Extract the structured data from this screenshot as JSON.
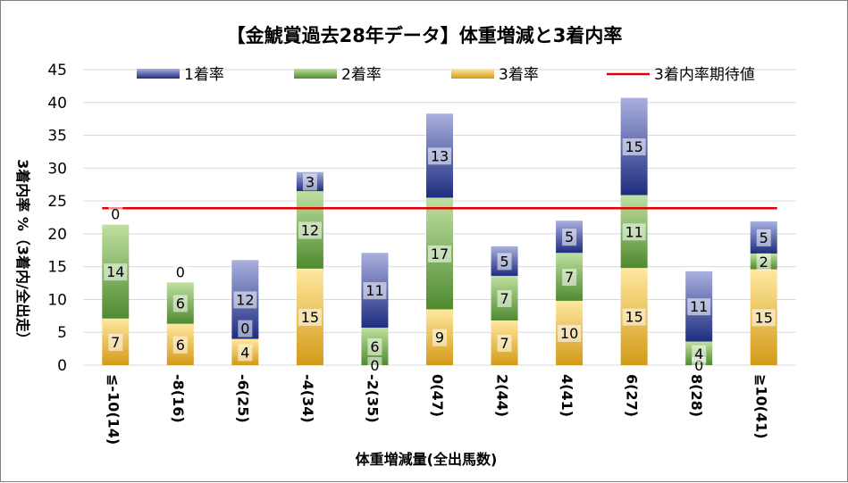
{
  "chart_data": {
    "type": "bar",
    "stacked": true,
    "title": "【金鯱賞過去28年データ】体重増減と3着内率",
    "xlabel": "体重増減量(全出馬数)",
    "ylabel": "3着内率 %（3着内/全出走）",
    "ylim": [
      0,
      45
    ],
    "yticks": [
      0,
      5,
      10,
      15,
      20,
      25,
      30,
      35,
      40,
      45
    ],
    "grid": true,
    "legend_position": "top",
    "categories": [
      "≦-10(14)",
      "-8(16)",
      "-6(25)",
      "-4(34)",
      "-2(35)",
      "0(47)",
      "2(44)",
      "4(41)",
      "6(27)",
      "8(28)",
      "≧10(41)"
    ],
    "series": [
      {
        "name": "3着率",
        "color": "#e6b640",
        "values": [
          7.1,
          6.3,
          4.0,
          14.7,
          0.0,
          8.5,
          6.8,
          9.8,
          14.8,
          0.0,
          14.6
        ],
        "labels": [
          "7",
          "6",
          "4",
          "15",
          "0",
          "9",
          "7",
          "10",
          "15",
          "0",
          "15"
        ]
      },
      {
        "name": "2着率",
        "color": "#70a048",
        "values": [
          14.3,
          6.3,
          0.0,
          11.8,
          5.7,
          17.0,
          6.8,
          7.3,
          11.1,
          3.6,
          2.4
        ],
        "labels": [
          "14",
          "6",
          "0",
          "12",
          "6",
          "17",
          "7",
          "7",
          "11",
          "4",
          "2"
        ]
      },
      {
        "name": "1着率",
        "color": "#3c4a94",
        "values": [
          0.0,
          0.0,
          12.0,
          2.9,
          11.4,
          12.8,
          4.5,
          4.9,
          14.8,
          10.7,
          4.9
        ],
        "labels": [
          "0",
          "0",
          "12",
          "3",
          "11",
          "13",
          "5",
          "5",
          "15",
          "11",
          "5"
        ]
      }
    ],
    "reference_line": {
      "name": "3着内率期待値",
      "value": 23.9,
      "color": "#e00000"
    }
  }
}
